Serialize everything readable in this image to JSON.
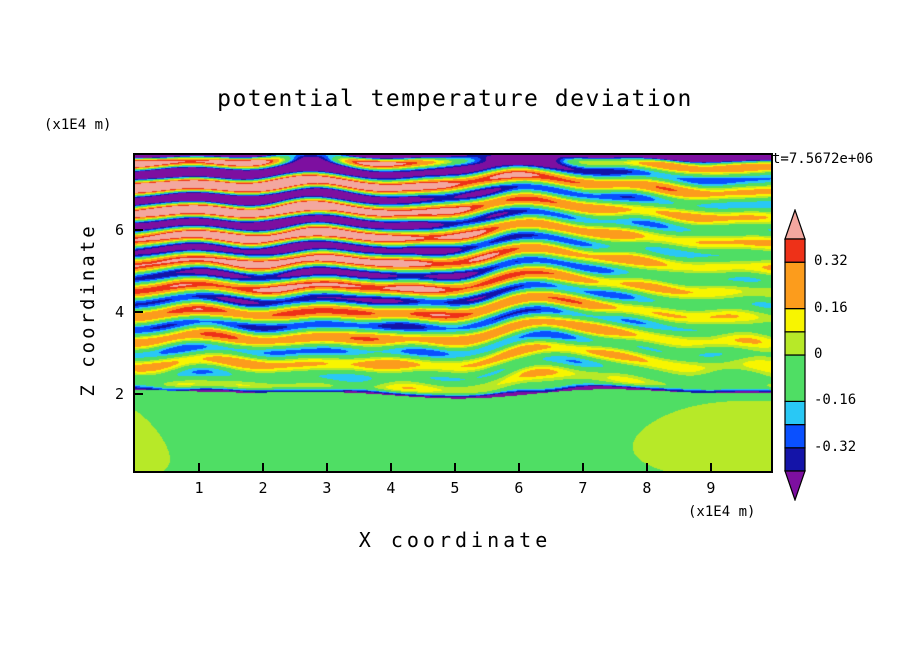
{
  "figure": {
    "title": "potential temperature deviation",
    "timestamp": "t=7.5672e+06",
    "x_axis": {
      "label": "X coordinate",
      "units": "(x1E4 m)",
      "tick_labels": [
        "1",
        "2",
        "3",
        "4",
        "5",
        "6",
        "7",
        "8",
        "9"
      ],
      "tick_values": [
        1,
        2,
        3,
        4,
        5,
        6,
        7,
        8,
        9
      ]
    },
    "y_axis": {
      "label": "Z coordinate",
      "units": "(x1E4 m)",
      "tick_labels": [
        "2",
        "4",
        "6"
      ],
      "tick_values": [
        2,
        4,
        6
      ]
    },
    "colorbar": {
      "labels": [
        "0.32",
        "0.16",
        "0",
        "-0.16",
        "-0.32"
      ],
      "min": -0.4,
      "max": 0.4
    }
  },
  "chart_data": {
    "type": "heatmap",
    "title": "potential temperature deviation",
    "xlabel": "X coordinate (x1E4 m)",
    "ylabel": "Z coordinate (x1E4 m)",
    "time_label": "t=7.5672e+06",
    "x_range": [
      0,
      9.94
    ],
    "z_range": [
      0.1,
      7.85
    ],
    "x_ticks": [
      1,
      2,
      3,
      4,
      5,
      6,
      7,
      8,
      9
    ],
    "z_ticks": [
      2,
      4,
      6
    ],
    "levels": [
      -0.4,
      -0.32,
      -0.24,
      -0.16,
      0,
      0.08,
      0.16,
      0.32,
      0.4
    ],
    "level_colors": [
      "#7D0FA0",
      "#1414A8",
      "#0A50FF",
      "#29C8F5",
      "#4FDE64",
      "#B7E928",
      "#F8F500",
      "#FC9C1C",
      "#EE3118",
      "#F3A79F"
    ],
    "colorbar_tick_labels": [
      "0.32",
      "0.16",
      "0",
      "-0.16",
      "-0.32"
    ],
    "description": "Filled-contour vertical cross-section of potential temperature deviation from a stratified-flow simulation at t=7.5672e+06 s. Below z of about 2x1E4 m the deviation is near zero: broad green area (-0.16 to 0) with chartreuse patches (0 to 0.08). Above that interface, horizontally layered gravity-wave bands alternate in sign; their amplitude grows with height, saturating beyond +/-0.4 aloft, so the upper half is dominated by alternating pink (> 0.4) and purple (< -0.4) bands with thin red/orange/yellow and cyan/blue/navy fringes. A thin dark negative band runs along the interface near z = 2, and a continuous purple band caps the top edge of the domain.",
    "field_params": {
      "interface_z": 2.0,
      "stripe_wavelength": 0.62,
      "amp_base": 0.09,
      "amp_growth": 0.1
    }
  }
}
